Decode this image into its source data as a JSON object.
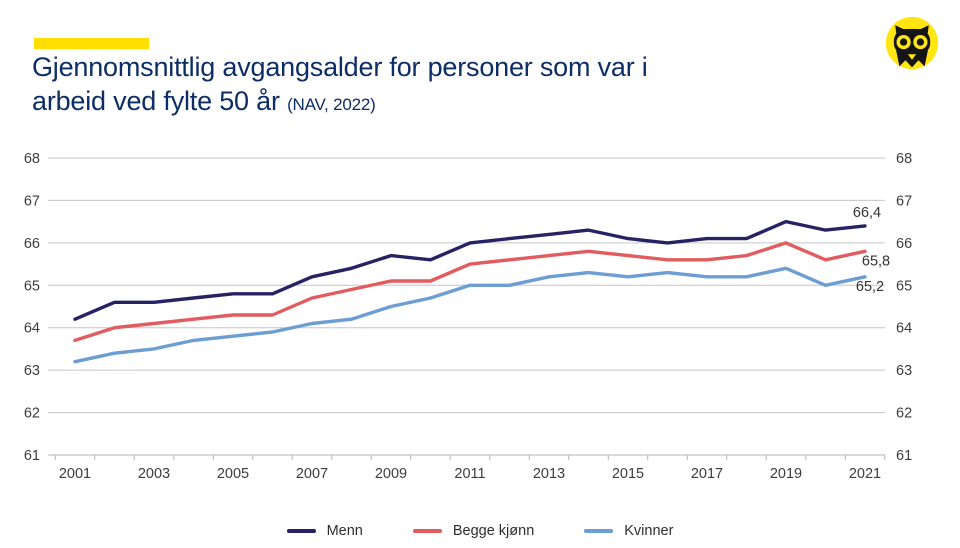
{
  "header": {
    "accent_bar_color": "#FFDE00",
    "title_line1": "Gjennomsnittlig avgangsalder for personer som var i",
    "title_line2": "arbeid ved fylte 50 år",
    "title_source": "(NAV, 2022)",
    "title_color": "#0D2D66",
    "logo": {
      "name": "owl-logo",
      "bg_color": "#FFE512",
      "fg_color": "#151515"
    }
  },
  "chart_data": {
    "type": "line",
    "title": "Gjennomsnittlig avgangsalder for personer som var i arbeid ved fylte 50 år",
    "source": "NAV, 2022",
    "x": [
      2001,
      2002,
      2003,
      2004,
      2005,
      2006,
      2007,
      2008,
      2009,
      2010,
      2011,
      2012,
      2013,
      2014,
      2015,
      2016,
      2017,
      2018,
      2019,
      2020,
      2021
    ],
    "x_tick_labels": [
      "2001",
      "2003",
      "2005",
      "2007",
      "2009",
      "2011",
      "2013",
      "2015",
      "2017",
      "2019",
      "2021"
    ],
    "y_ticks": [
      61,
      62,
      63,
      64,
      65,
      66,
      67,
      68
    ],
    "ylim": [
      61,
      68
    ],
    "grid": true,
    "legend_position": "bottom",
    "axis_color": "#b3b3b3",
    "grid_color": "#c6c6c6",
    "series": [
      {
        "name": "Menn",
        "color": "#272264",
        "end_label": "66,4",
        "values": [
          64.2,
          64.6,
          64.6,
          64.7,
          64.8,
          64.8,
          65.2,
          65.4,
          65.7,
          65.6,
          66.0,
          66.1,
          66.2,
          66.3,
          66.1,
          66.0,
          66.1,
          66.1,
          66.5,
          66.3,
          66.4
        ]
      },
      {
        "name": "Begge kjønn",
        "color": "#E25B5E",
        "end_label": "65,8",
        "values": [
          63.7,
          64.0,
          64.1,
          64.2,
          64.3,
          64.3,
          64.7,
          64.9,
          65.1,
          65.1,
          65.5,
          65.6,
          65.7,
          65.8,
          65.7,
          65.6,
          65.6,
          65.7,
          66.0,
          65.6,
          65.8
        ]
      },
      {
        "name": "Kvinner",
        "color": "#6C9DD3",
        "end_label": "65,2",
        "values": [
          63.2,
          63.4,
          63.5,
          63.7,
          63.8,
          63.9,
          64.1,
          64.2,
          64.5,
          64.7,
          65.0,
          65.0,
          65.2,
          65.3,
          65.2,
          65.3,
          65.2,
          65.2,
          65.4,
          65.0,
          65.2
        ]
      }
    ]
  }
}
